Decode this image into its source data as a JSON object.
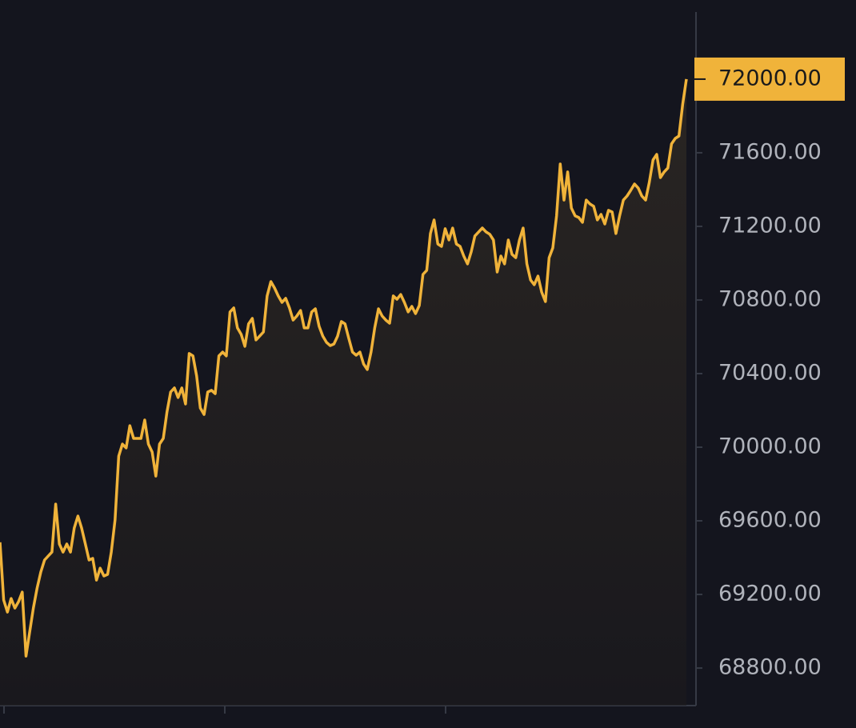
{
  "chart_data": {
    "type": "line",
    "color": "#f0b33a",
    "values": [
      69483,
      69170,
      69104,
      69178,
      69126,
      69161,
      69213,
      68865,
      68996,
      69126,
      69235,
      69322,
      69387,
      69409,
      69430,
      69691,
      69474,
      69430,
      69474,
      69430,
      69561,
      69626,
      69561,
      69474,
      69387,
      69396,
      69278,
      69343,
      69300,
      69309,
      69430,
      69604,
      69952,
      70017,
      69996,
      70117,
      70048,
      70048,
      70048,
      70148,
      70017,
      69974,
      69843,
      70017,
      70048,
      70191,
      70300,
      70322,
      70270,
      70322,
      70235,
      70509,
      70496,
      70387,
      70213,
      70178,
      70300,
      70309,
      70291,
      70496,
      70517,
      70496,
      70735,
      70757,
      70648,
      70613,
      70548,
      70670,
      70700,
      70583,
      70604,
      70626,
      70822,
      70900,
      70865,
      70822,
      70787,
      70809,
      70757,
      70691,
      70713,
      70743,
      70648,
      70648,
      70735,
      70752,
      70657,
      70604,
      70570,
      70552,
      70561,
      70604,
      70683,
      70670,
      70591,
      70517,
      70500,
      70517,
      70452,
      70422,
      70517,
      70648,
      70752,
      70713,
      70691,
      70674,
      70822,
      70804,
      70830,
      70787,
      70735,
      70765,
      70726,
      70770,
      70939,
      70961,
      71161,
      71235,
      71104,
      71091,
      71187,
      71126,
      71191,
      71104,
      71091,
      71039,
      70996,
      71061,
      71148,
      71170,
      71191,
      71170,
      71157,
      71126,
      70952,
      71039,
      70996,
      71126,
      71048,
      71030,
      71126,
      71191,
      70996,
      70909,
      70883,
      70930,
      70843,
      70791,
      71030,
      71083,
      71257,
      71539,
      71343,
      71496,
      71300,
      71257,
      71248,
      71222,
      71343,
      71322,
      71309,
      71235,
      71265,
      71213,
      71287,
      71278,
      71161,
      71257,
      71343,
      71365,
      71396,
      71430,
      71409,
      71365,
      71343,
      71439,
      71561,
      71591,
      71465,
      71496,
      71517,
      71648,
      71678,
      71691,
      71865,
      72000
    ],
    "ylim": [
      68596,
      72430
    ],
    "yticks": [
      {
        "value": 68800,
        "label": "68800.00"
      },
      {
        "value": 69200,
        "label": "69200.00"
      },
      {
        "value": 69600,
        "label": "69600.00"
      },
      {
        "value": 70000,
        "label": "70000.00"
      },
      {
        "value": 70400,
        "label": "70400.00"
      },
      {
        "value": 70800,
        "label": "70800.00"
      },
      {
        "value": 71200,
        "label": "71200.00"
      },
      {
        "value": 71600,
        "label": "71600.00"
      }
    ],
    "last_price": {
      "value": 72000,
      "label": "72000.00"
    }
  }
}
